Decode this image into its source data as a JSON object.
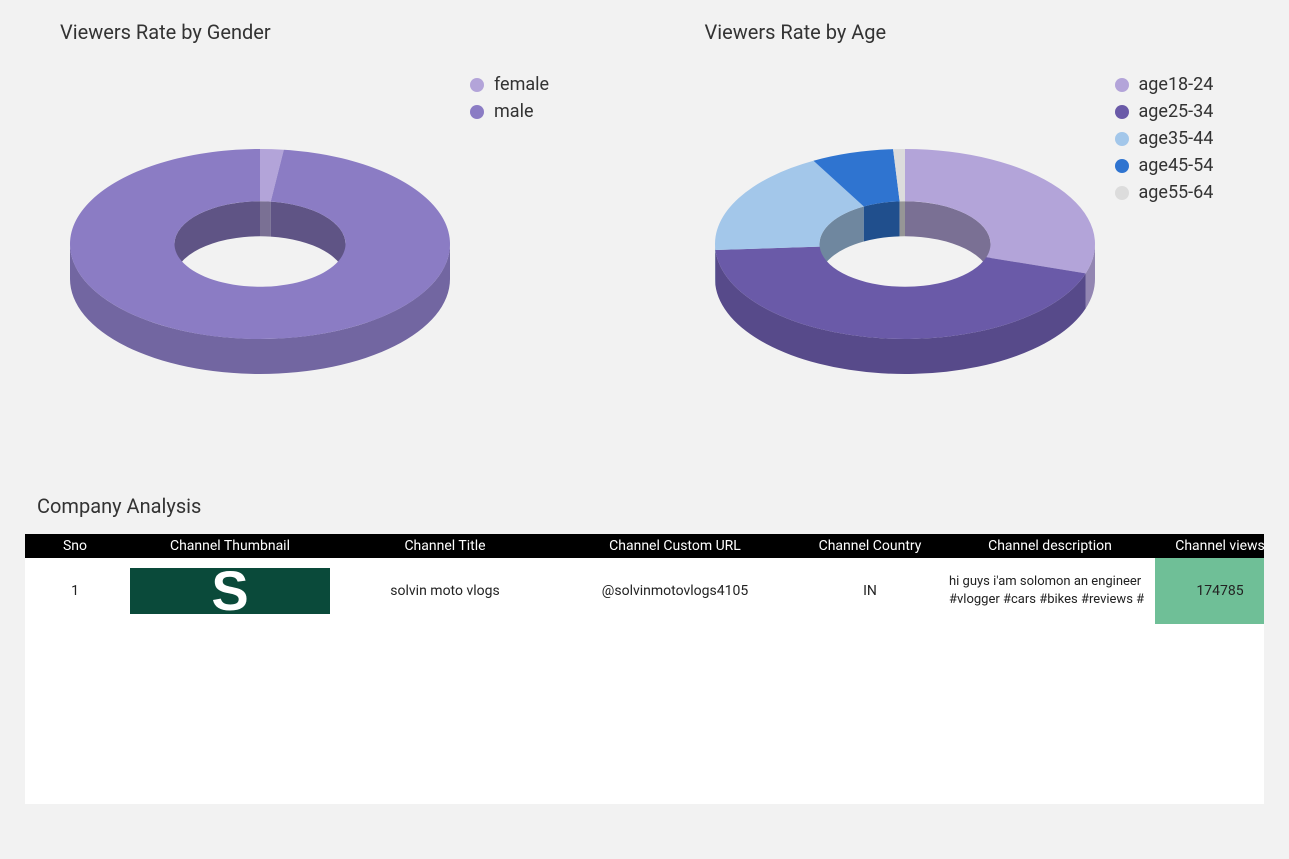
{
  "charts": {
    "gender": {
      "title": "Viewers Rate by Gender",
      "type": "donut3d",
      "inner_ratio": 0.45,
      "depth": 35,
      "tilt": 0.5,
      "background": "#f2f2f2",
      "series": [
        {
          "label": "female",
          "value": 2,
          "color": "#b3a4d9"
        },
        {
          "label": "male",
          "value": 98,
          "color": "#8b7cc4"
        }
      ]
    },
    "age": {
      "title": "Viewers Rate by Age",
      "type": "donut3d",
      "inner_ratio": 0.45,
      "depth": 35,
      "tilt": 0.5,
      "background": "#f2f2f2",
      "series": [
        {
          "label": "age18-24",
          "value": 30,
          "color": "#b3a4d9"
        },
        {
          "label": "age25-34",
          "value": 44,
          "color": "#6a5aa8"
        },
        {
          "label": "age35-44",
          "value": 18,
          "color": "#a3c7ea"
        },
        {
          "label": "age45-54",
          "value": 7,
          "color": "#2f74d0"
        },
        {
          "label": "age55-64",
          "value": 1,
          "color": "#dcdcdc"
        }
      ]
    }
  },
  "analysis": {
    "title": "Company Analysis",
    "columns": [
      "Sno",
      "Channel Thumbnail",
      "Channel Title",
      "Channel Custom URL",
      "Channel Country",
      "Channel description",
      "Channel views"
    ],
    "rows": [
      {
        "sno": "1",
        "thumb_letter": "S",
        "thumb_bg": "#0a4a3a",
        "title": "solvin moto vlogs",
        "url": "@solvinmotovlogs4105",
        "country": "IN",
        "description": "hi guys i'am solomon an engineer #vlogger #cars #bikes #reviews  #",
        "views": "174785",
        "views_bg": "#6fbf97"
      }
    ]
  }
}
